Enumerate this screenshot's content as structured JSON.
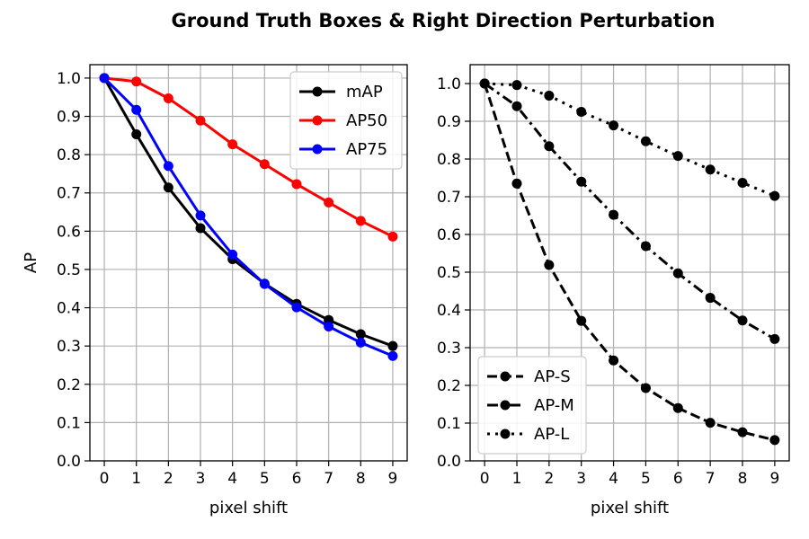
{
  "title": "Ground Truth Boxes  &  Right Direction Perturbation",
  "chart_data": [
    {
      "type": "line",
      "xlabel": "pixel shift",
      "ylabel": "AP",
      "x": [
        0,
        1,
        2,
        3,
        4,
        5,
        6,
        7,
        8,
        9
      ],
      "xlim": [
        -0.45,
        9.45
      ],
      "ylim": [
        0.0,
        1.035
      ],
      "yticks": [
        0.0,
        0.1,
        0.2,
        0.3,
        0.4,
        0.5,
        0.6,
        0.7,
        0.8,
        0.9,
        1.0
      ],
      "grid": true,
      "legend": "upper right",
      "series": [
        {
          "name": "mAP",
          "color": "#000000",
          "dash": "solid",
          "values": [
            1.0,
            0.853,
            0.714,
            0.608,
            0.527,
            0.463,
            0.41,
            0.368,
            0.331,
            0.3
          ]
        },
        {
          "name": "AP50",
          "color": "#ff0000",
          "dash": "solid",
          "values": [
            1.0,
            0.991,
            0.947,
            0.889,
            0.827,
            0.775,
            0.723,
            0.675,
            0.627,
            0.586
          ]
        },
        {
          "name": "AP75",
          "color": "#0000ff",
          "dash": "solid",
          "values": [
            1.0,
            0.917,
            0.77,
            0.641,
            0.539,
            0.462,
            0.401,
            0.351,
            0.309,
            0.274
          ]
        }
      ]
    },
    {
      "type": "line",
      "xlabel": "pixel shift",
      "ylabel": "",
      "x": [
        0,
        1,
        2,
        3,
        4,
        5,
        6,
        7,
        8,
        9
      ],
      "xlim": [
        -0.45,
        9.45
      ],
      "ylim": [
        0.0,
        1.05
      ],
      "yticks": [
        0.0,
        0.1,
        0.2,
        0.3,
        0.4,
        0.5,
        0.6,
        0.7,
        0.8,
        0.9,
        1.0
      ],
      "grid": true,
      "legend": "lower left",
      "series": [
        {
          "name": "AP-S",
          "color": "#000000",
          "dash": "dashed",
          "values": [
            1.0,
            0.735,
            0.519,
            0.371,
            0.266,
            0.193,
            0.14,
            0.101,
            0.076,
            0.055
          ]
        },
        {
          "name": "AP-M",
          "color": "#000000",
          "dash": "dashdot",
          "values": [
            1.0,
            0.94,
            0.834,
            0.74,
            0.652,
            0.569,
            0.497,
            0.432,
            0.372,
            0.323
          ]
        },
        {
          "name": "AP-L",
          "color": "#000000",
          "dash": "dotted",
          "values": [
            1.0,
            0.996,
            0.968,
            0.925,
            0.889,
            0.847,
            0.808,
            0.772,
            0.737,
            0.702
          ]
        }
      ]
    }
  ]
}
